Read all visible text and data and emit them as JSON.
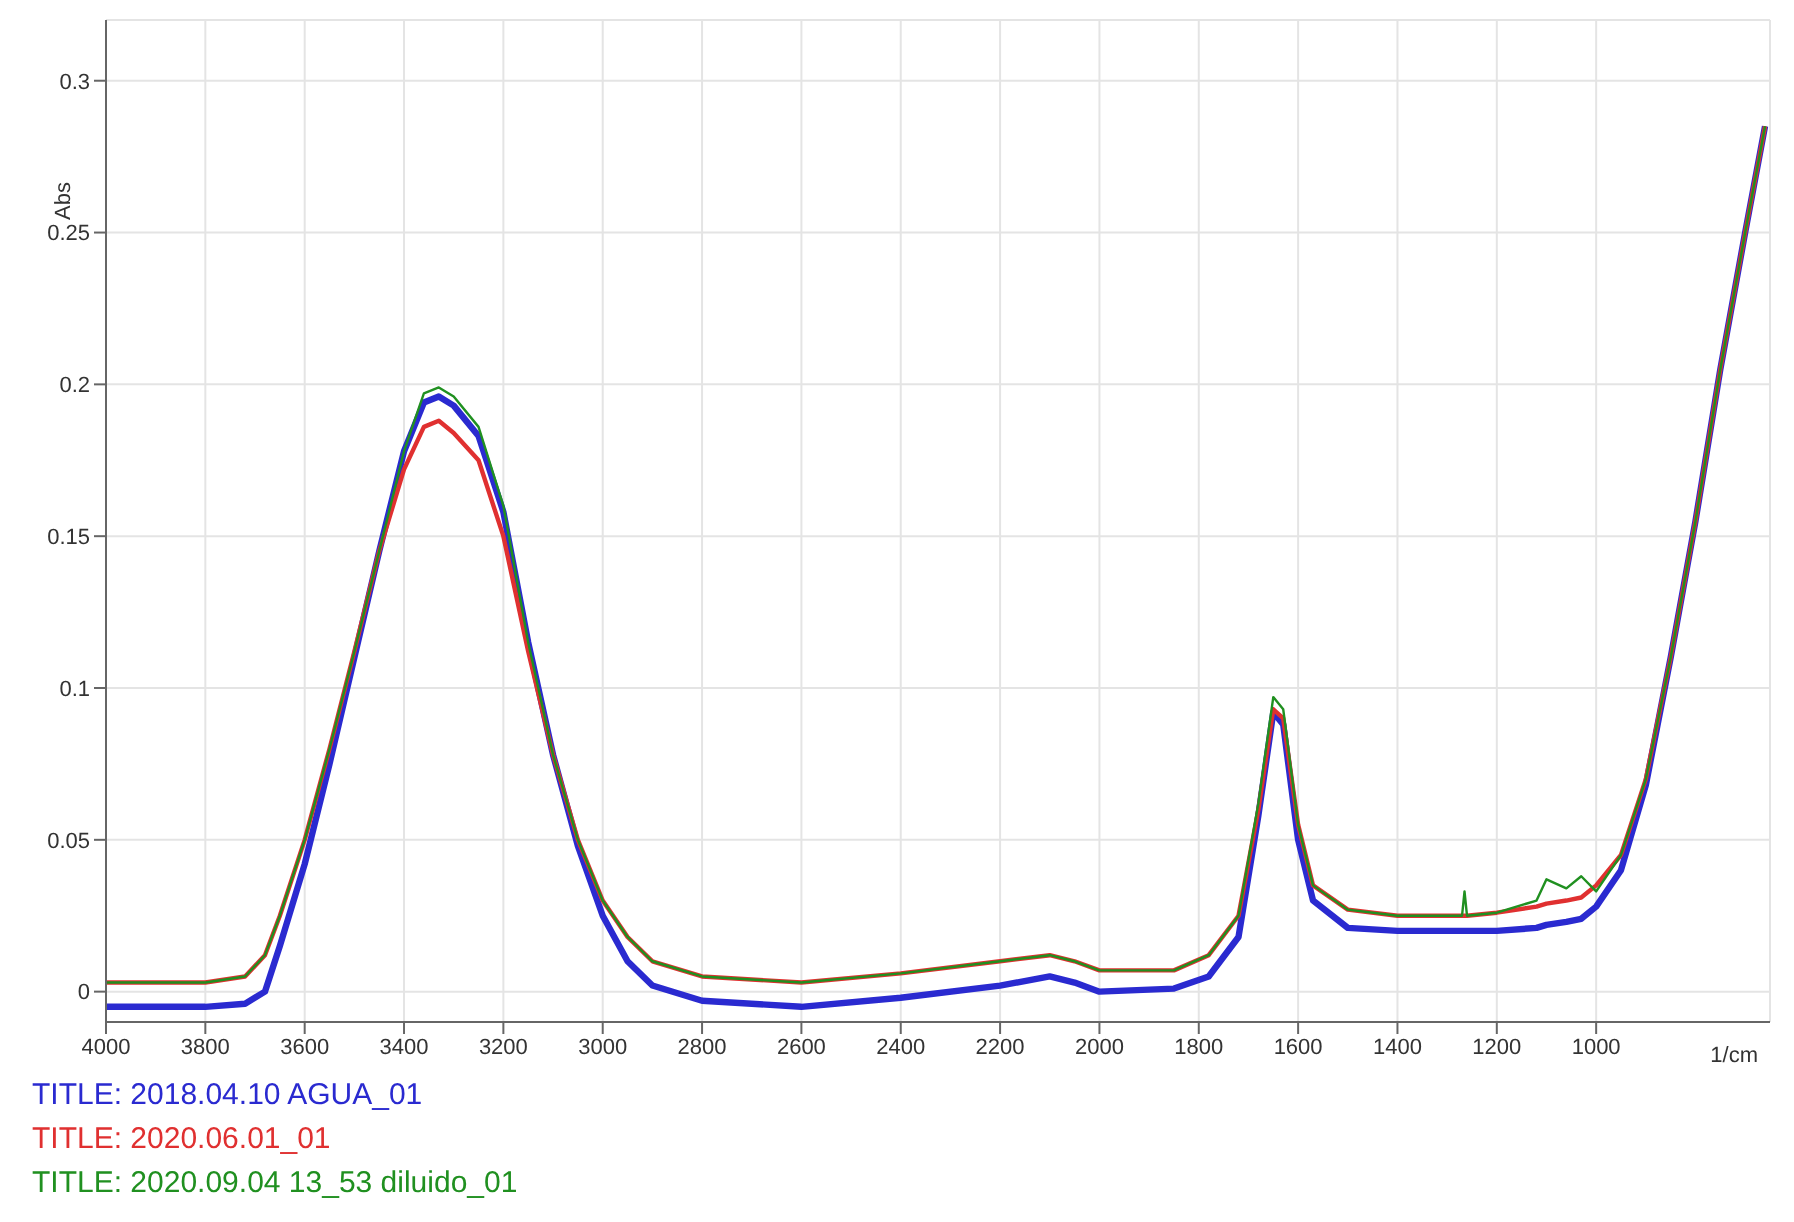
{
  "chart_data": {
    "type": "line",
    "ylabel": "Abs",
    "xlabel": "1/cm",
    "x": [
      4000,
      3800,
      3720,
      3680,
      3650,
      3600,
      3550,
      3500,
      3450,
      3400,
      3360,
      3330,
      3300,
      3250,
      3200,
      3150,
      3100,
      3050,
      3000,
      2950,
      2900,
      2800,
      2600,
      2400,
      2200,
      2100,
      2050,
      2000,
      1850,
      1780,
      1720,
      1680,
      1650,
      1630,
      1600,
      1570,
      1500,
      1400,
      1270,
      1265,
      1260,
      1200,
      1120,
      1100,
      1060,
      1030,
      1000,
      950,
      900,
      850,
      800,
      750,
      700,
      660
    ],
    "series": [
      {
        "name": "TITLE: 2018.04.10 AGUA_01",
        "color": "#2a2ad0",
        "values": [
          -0.005,
          -0.005,
          -0.004,
          0.0,
          0.015,
          0.042,
          0.075,
          0.11,
          0.145,
          0.178,
          0.194,
          0.196,
          0.193,
          0.183,
          0.158,
          0.115,
          0.078,
          0.048,
          0.025,
          0.01,
          0.002,
          -0.003,
          -0.005,
          -0.002,
          0.002,
          0.005,
          0.003,
          0.0,
          0.001,
          0.005,
          0.018,
          0.058,
          0.092,
          0.088,
          0.05,
          0.03,
          0.021,
          0.02,
          0.02,
          0.02,
          0.02,
          0.02,
          0.021,
          0.022,
          0.023,
          0.024,
          0.028,
          0.04,
          0.068,
          0.11,
          0.155,
          0.205,
          0.25,
          0.285
        ]
      },
      {
        "name": "TITLE: 2020.06.01_01",
        "color": "#e03030",
        "values": [
          0.003,
          0.003,
          0.005,
          0.012,
          0.025,
          0.05,
          0.08,
          0.112,
          0.145,
          0.172,
          0.186,
          0.188,
          0.184,
          0.175,
          0.15,
          0.112,
          0.078,
          0.05,
          0.03,
          0.018,
          0.01,
          0.005,
          0.003,
          0.006,
          0.01,
          0.012,
          0.01,
          0.007,
          0.007,
          0.012,
          0.025,
          0.06,
          0.093,
          0.09,
          0.055,
          0.035,
          0.027,
          0.025,
          0.025,
          0.025,
          0.025,
          0.026,
          0.028,
          0.029,
          0.03,
          0.031,
          0.035,
          0.045,
          0.07,
          0.11,
          0.155,
          0.205,
          0.25,
          0.285
        ]
      },
      {
        "name": "TITLE: 2020.09.04 13_53 diluido_01",
        "color": "#209020",
        "values": [
          0.003,
          0.003,
          0.005,
          0.012,
          0.025,
          0.05,
          0.08,
          0.112,
          0.145,
          0.178,
          0.197,
          0.199,
          0.196,
          0.186,
          0.16,
          0.115,
          0.078,
          0.05,
          0.03,
          0.018,
          0.01,
          0.005,
          0.003,
          0.006,
          0.01,
          0.012,
          0.01,
          0.007,
          0.007,
          0.012,
          0.025,
          0.062,
          0.097,
          0.093,
          0.055,
          0.035,
          0.027,
          0.025,
          0.025,
          0.033,
          0.025,
          0.026,
          0.03,
          0.037,
          0.034,
          0.038,
          0.033,
          0.045,
          0.07,
          0.11,
          0.155,
          0.205,
          0.25,
          0.285
        ]
      }
    ],
    "xlim": [
      4000,
      650
    ],
    "xticks": [
      4000,
      3800,
      3600,
      3400,
      3200,
      3000,
      2800,
      2600,
      2400,
      2200,
      2000,
      1800,
      1600,
      1400,
      1200,
      1000
    ],
    "ylim": [
      -0.01,
      0.32
    ],
    "yticks": [
      0,
      0.05,
      0.1,
      0.15,
      0.2,
      0.25,
      0.3
    ],
    "grid": true,
    "legend": "bottom left",
    "marker": "none",
    "line_style": "solid"
  }
}
